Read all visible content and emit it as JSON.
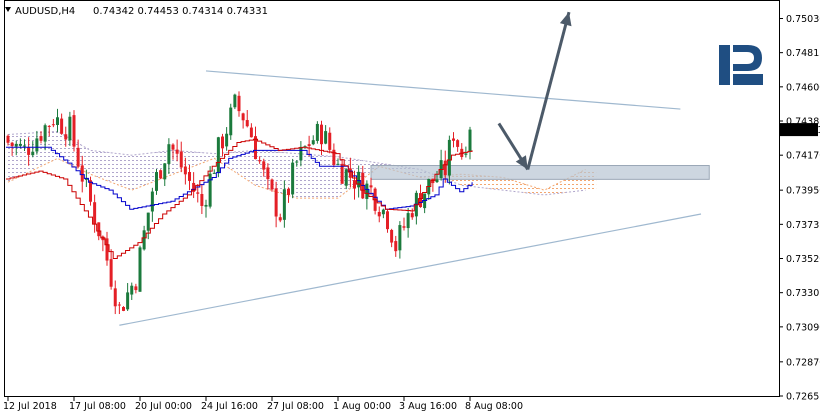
{
  "header": {
    "symbol": "AUDUSD,H4",
    "ohlc": "0.74342 0.74453 0.74314 0.74331"
  },
  "brand": {
    "logo_text": "R",
    "color": "#1f4e82"
  },
  "colors": {
    "bull_candle": "#1b7a3c",
    "bear_candle": "#e41f26",
    "tenkan": "#0000cc",
    "kijun": "#cc0000",
    "cloud_up": "#f3a770",
    "cloud_down": "#b0a6cc",
    "triangle": "#9fb8cf",
    "forecast_arrow": "#4c5a69",
    "zone": "#b8c4d3",
    "price_label_bg": "#000000"
  },
  "chart_data": {
    "type": "candlestick",
    "symbol": "AUDUSD",
    "timeframe": "H4",
    "last_price": "0.74331",
    "ylim": [
      0.72655,
      0.7514
    ],
    "y_ticks": [
      "0.75030",
      "0.74815",
      "0.74600",
      "0.74385",
      "0.74170",
      "0.73950",
      "0.73735",
      "0.73520",
      "0.73305",
      "0.73090",
      "0.72870",
      "0.72655"
    ],
    "x_ticks": [
      "12 Jul 2018",
      "17 Jul 08:00",
      "20 Jul 00:00",
      "24 Jul 16:00",
      "27 Jul 08:00",
      "1 Aug 00:00",
      "3 Aug 16:00",
      "8 Aug 08:00"
    ],
    "bar_count": 113,
    "bars_visible_to_future": 143,
    "close_path": [
      [
        0,
        0.7425
      ],
      [
        4,
        0.742
      ],
      [
        8,
        0.7432
      ],
      [
        11,
        0.7441
      ],
      [
        15,
        0.7433
      ],
      [
        19,
        0.7395
      ],
      [
        23,
        0.7362
      ],
      [
        27,
        0.732
      ],
      [
        31,
        0.734
      ],
      [
        35,
        0.7395
      ],
      [
        39,
        0.7425
      ],
      [
        43,
        0.7405
      ],
      [
        47,
        0.7385
      ],
      [
        51,
        0.742
      ],
      [
        55,
        0.7448
      ],
      [
        57,
        0.7442
      ],
      [
        59,
        0.743
      ],
      [
        63,
        0.7395
      ],
      [
        66,
        0.738
      ],
      [
        70,
        0.7412
      ],
      [
        73,
        0.7425
      ],
      [
        76,
        0.7432
      ],
      [
        80,
        0.741
      ],
      [
        84,
        0.7402
      ],
      [
        88,
        0.7395
      ],
      [
        92,
        0.7378
      ],
      [
        94,
        0.736
      ],
      [
        96,
        0.7372
      ],
      [
        98,
        0.7385
      ],
      [
        102,
        0.7398
      ],
      [
        106,
        0.7408
      ],
      [
        108,
        0.7432
      ],
      [
        110,
        0.7418
      ],
      [
        112,
        0.7436
      ],
      [
        113,
        0.74331
      ]
    ],
    "tenkan_path": [
      [
        0,
        0.7422
      ],
      [
        10,
        0.7422
      ],
      [
        15,
        0.7412
      ],
      [
        20,
        0.74
      ],
      [
        25,
        0.7395
      ],
      [
        30,
        0.7383
      ],
      [
        40,
        0.7388
      ],
      [
        50,
        0.7403
      ],
      [
        54,
        0.7415
      ],
      [
        60,
        0.742
      ],
      [
        72,
        0.742
      ],
      [
        76,
        0.741
      ],
      [
        82,
        0.741
      ],
      [
        86,
        0.7398
      ],
      [
        92,
        0.7383
      ],
      [
        98,
        0.7385
      ],
      [
        104,
        0.7392
      ],
      [
        106,
        0.7402
      ],
      [
        110,
        0.7394
      ],
      [
        113,
        0.74
      ]
    ],
    "kijun_path": [
      [
        0,
        0.7402
      ],
      [
        8,
        0.7407
      ],
      [
        14,
        0.7402
      ],
      [
        20,
        0.7378
      ],
      [
        26,
        0.7352
      ],
      [
        32,
        0.7362
      ],
      [
        38,
        0.738
      ],
      [
        44,
        0.7392
      ],
      [
        50,
        0.741
      ],
      [
        56,
        0.7425
      ],
      [
        60,
        0.7427
      ],
      [
        66,
        0.742
      ],
      [
        72,
        0.7422
      ],
      [
        80,
        0.7418
      ],
      [
        86,
        0.7395
      ],
      [
        92,
        0.7383
      ],
      [
        98,
        0.7382
      ],
      [
        104,
        0.7405
      ],
      [
        108,
        0.7417
      ],
      [
        113,
        0.742
      ]
    ],
    "cloud_a": [
      [
        0,
        0.74
      ],
      [
        12,
        0.7415
      ],
      [
        20,
        0.7405
      ],
      [
        30,
        0.7395
      ],
      [
        40,
        0.7405
      ],
      [
        50,
        0.7415
      ],
      [
        60,
        0.7398
      ],
      [
        70,
        0.739
      ],
      [
        80,
        0.739
      ],
      [
        90,
        0.741
      ],
      [
        100,
        0.7403
      ],
      [
        110,
        0.7405
      ],
      [
        120,
        0.7403
      ],
      [
        130,
        0.7395
      ],
      [
        140,
        0.7408
      ]
    ],
    "cloud_b": [
      [
        0,
        0.743
      ],
      [
        12,
        0.7432
      ],
      [
        20,
        0.742
      ],
      [
        30,
        0.7417
      ],
      [
        40,
        0.742
      ],
      [
        50,
        0.7418
      ],
      [
        60,
        0.742
      ],
      [
        70,
        0.7418
      ],
      [
        80,
        0.7416
      ],
      [
        90,
        0.7412
      ],
      [
        100,
        0.7408
      ],
      [
        110,
        0.7398
      ],
      [
        120,
        0.7395
      ],
      [
        130,
        0.7392
      ],
      [
        140,
        0.7395
      ]
    ],
    "annotations": {
      "triangle_upper": [
        [
          48,
          0.747
        ],
        [
          163,
          0.7446
        ]
      ],
      "triangle_lower": [
        [
          27,
          0.731
        ],
        [
          168,
          0.738
        ]
      ],
      "zone": {
        "x": [
          88,
          170
        ],
        "y": [
          0.74018,
          0.74105
        ]
      },
      "arrow_down": [
        [
          119,
          0.7437
        ],
        [
          126,
          0.7408
        ]
      ],
      "arrow_up": [
        [
          126,
          0.7408
        ],
        [
          136,
          0.7507
        ]
      ]
    }
  }
}
